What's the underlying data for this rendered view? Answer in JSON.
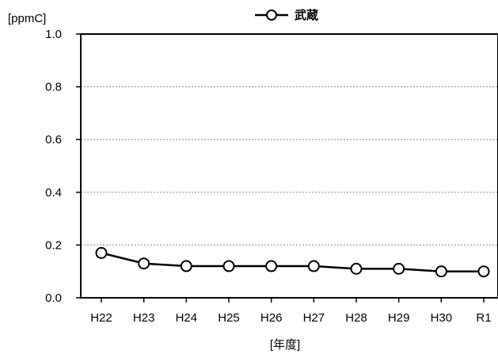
{
  "chart_data": {
    "type": "line",
    "categories": [
      "H22",
      "H23",
      "H24",
      "H25",
      "H26",
      "H27",
      "H28",
      "H29",
      "H30",
      "R1"
    ],
    "series": [
      {
        "name": "武蔵",
        "values": [
          0.17,
          0.13,
          0.12,
          0.12,
          0.12,
          0.12,
          0.11,
          0.11,
          0.1,
          0.1
        ]
      }
    ],
    "ylim": [
      0.0,
      1.0
    ],
    "yticks": [
      "0.0",
      "0.2",
      "0.4",
      "0.6",
      "0.8",
      "1.0"
    ],
    "ylabel": "[ppmC]",
    "xlabel": "[年度]",
    "grid": "horizontal dotted",
    "legend_position": "top-center",
    "colors": {
      "line": "#000000",
      "marker_fill": "#ffffff",
      "grid": "#888888"
    }
  }
}
